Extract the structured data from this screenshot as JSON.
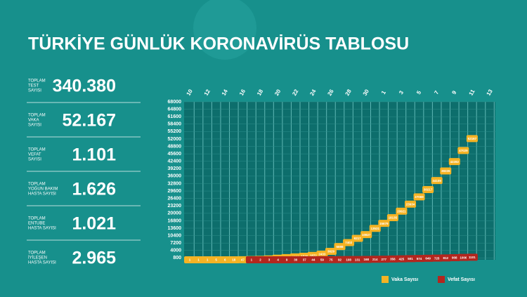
{
  "title": "TÜRKİYE GÜNLÜK KORONAVİRÜS TABLOSU",
  "stats": [
    {
      "label": [
        "TOPLAM",
        "TEST",
        "SAYISI"
      ],
      "value": "340.380"
    },
    {
      "label": [
        "TOPLAM",
        "VAKA",
        "SAYISI"
      ],
      "value": "52.167"
    },
    {
      "label": [
        "TOPLAM",
        "VEFAT",
        "SAYISI"
      ],
      "value": "1.101"
    },
    {
      "label": [
        "TOPLAM",
        "YOĞUN BAKIM",
        "HASTA SAYISI"
      ],
      "value": "1.626"
    },
    {
      "label": [
        "TOPLAM",
        "ENTUBE",
        "HASTA SAYISI"
      ],
      "value": "1.021"
    },
    {
      "label": [
        "TOPLAM",
        "İYİLEŞEN",
        "HASTA SAYISI"
      ],
      "value": "2.965"
    }
  ],
  "chart_data": {
    "type": "line",
    "categories": [
      "10",
      null,
      "12",
      null,
      "14",
      null,
      "16",
      null,
      "18",
      null,
      "20",
      null,
      "22",
      null,
      "24",
      null,
      "26",
      null,
      "28",
      null,
      "30",
      null,
      "1",
      null,
      "3",
      null,
      "5",
      null,
      "7",
      null,
      "9",
      null,
      "11",
      null,
      "13"
    ],
    "series": [
      {
        "name": "Vaka Sayısı",
        "color": "#f5b324",
        "values": [
          1,
          1,
          1,
          5,
          6,
          18,
          47,
          98,
          191,
          359,
          670,
          947,
          1236,
          1529,
          1872,
          2433,
          3629,
          5698,
          7402,
          9217,
          10827,
          13531,
          15679,
          18135,
          20921,
          23934,
          27069,
          30217,
          34109,
          38226,
          42282,
          47029,
          52167,
          null,
          null
        ]
      },
      {
        "name": "Vefat Sayısı",
        "color": "#b3261e",
        "values": [
          null,
          null,
          null,
          null,
          null,
          null,
          null,
          1,
          2,
          3,
          4,
          9,
          30,
          37,
          44,
          59,
          75,
          92,
          108,
          131,
          168,
          214,
          277,
          356,
          425,
          501,
          574,
          649,
          725,
          812,
          908,
          1006,
          1101,
          null,
          null
        ]
      }
    ],
    "ylim": [
      0,
      68000
    ],
    "yticks": [
      800,
      4000,
      7200,
      10400,
      13600,
      16800,
      20000,
      23200,
      26400,
      29600,
      32800,
      36000,
      39200,
      42400,
      45600,
      48800,
      52000,
      55200,
      58400,
      61600,
      64800,
      68000
    ],
    "grid": true,
    "legend": "bottom-right"
  }
}
